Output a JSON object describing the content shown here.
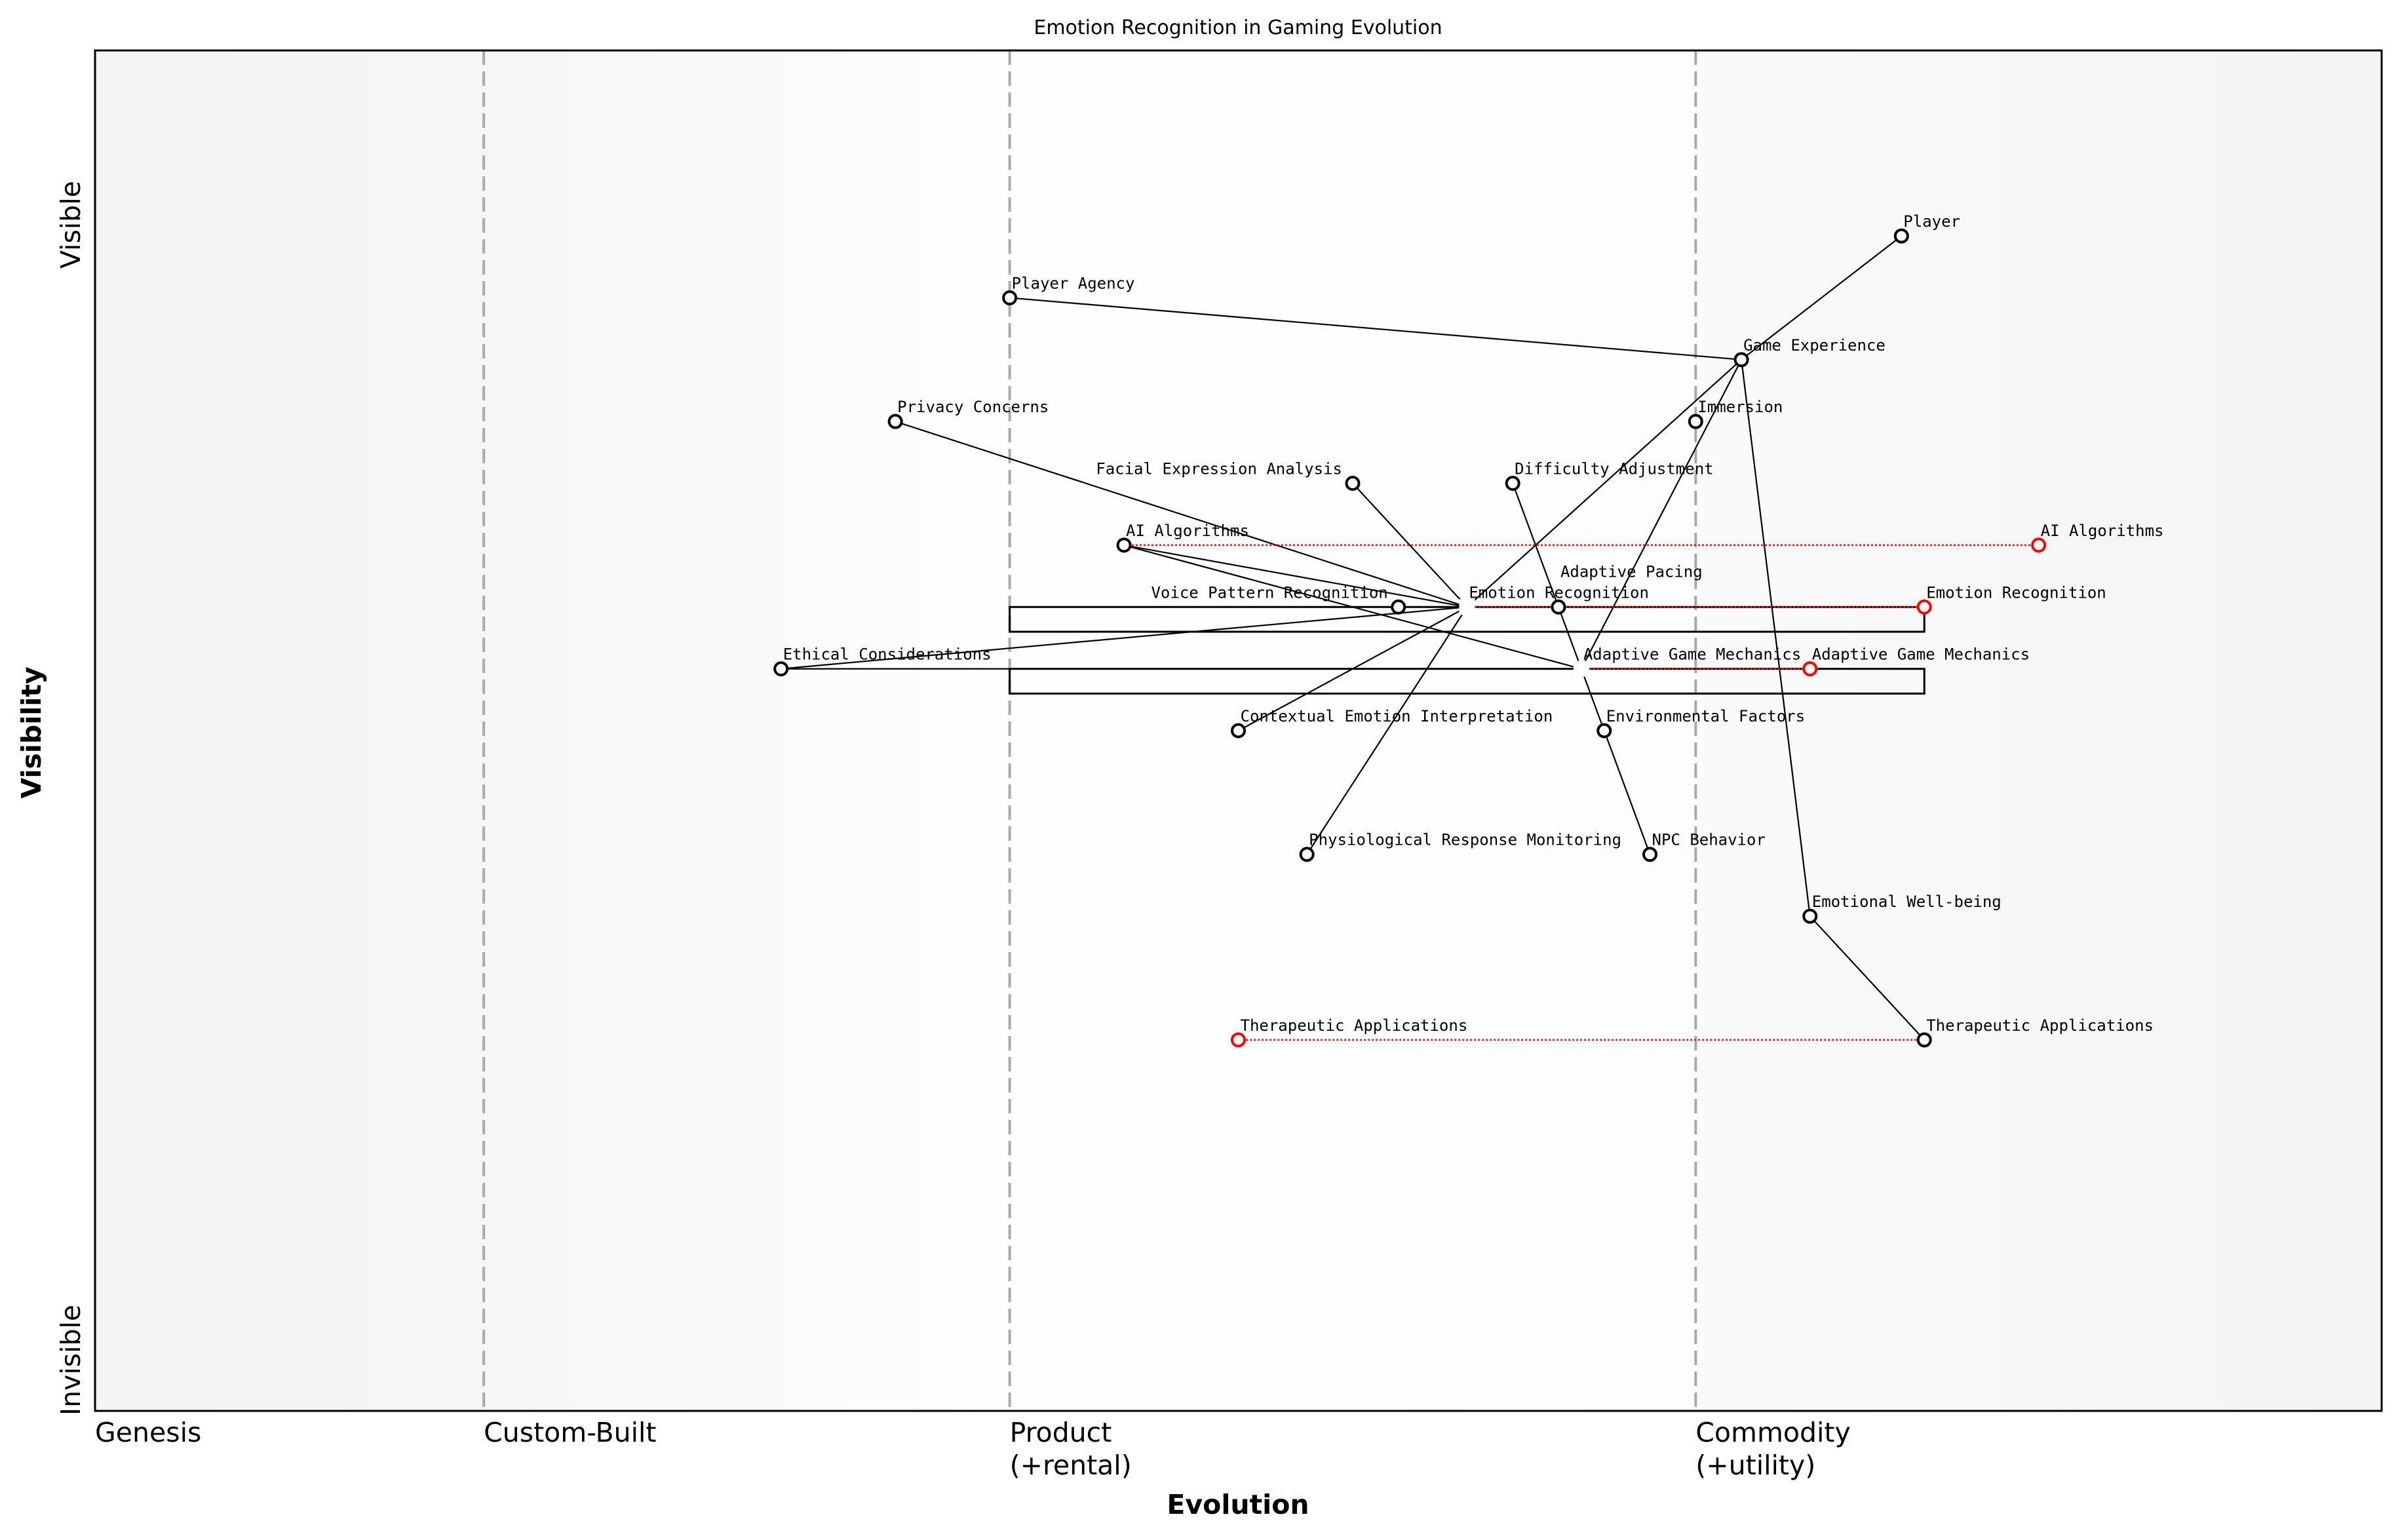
{
  "title": "Emotion Recognition in Gaming Evolution",
  "chart_data": {
    "type": "wardley-map",
    "title": "Emotion Recognition in Gaming Evolution",
    "xlabel": "Evolution",
    "ylabel": "Visibility",
    "xlim": [
      0,
      1
    ],
    "ylim": [
      0,
      1.1
    ],
    "y_tick_labels": {
      "top": "Visible",
      "bottom": "Invisible"
    },
    "stages": [
      {
        "label": "Genesis",
        "x": 0
      },
      {
        "label": "Custom-Built",
        "x": 0.17
      },
      {
        "label": "Product\n(+rental)",
        "x": 0.4
      },
      {
        "label": "Commodity\n(+utility)",
        "x": 0.7
      }
    ],
    "components": [
      {
        "name": "Player",
        "x": 0.79,
        "y": 0.95
      },
      {
        "name": "Player Agency",
        "x": 0.4,
        "y": 0.9
      },
      {
        "name": "Game Experience",
        "x": 0.72,
        "y": 0.85
      },
      {
        "name": "Privacy Concerns",
        "x": 0.35,
        "y": 0.8
      },
      {
        "name": "Immersion",
        "x": 0.7,
        "y": 0.8
      },
      {
        "name": "Facial Expression Analysis",
        "x": 0.55,
        "y": 0.75
      },
      {
        "name": "Difficulty Adjustment",
        "x": 0.62,
        "y": 0.75
      },
      {
        "name": "AI Algorithms",
        "x": 0.45,
        "y": 0.7
      },
      {
        "name": "Voice Pattern Recognition",
        "x": 0.57,
        "y": 0.65
      },
      {
        "name": "Emotion Recognition",
        "x": 0.6,
        "y": 0.65,
        "pipeline": true
      },
      {
        "name": "Adaptive Pacing",
        "x": 0.64,
        "y": 0.65
      },
      {
        "name": "Ethical Considerations",
        "x": 0.3,
        "y": 0.6
      },
      {
        "name": "Adaptive Game Mechanics",
        "x": 0.65,
        "y": 0.6,
        "pipeline": true
      },
      {
        "name": "Contextual Emotion Interpretation",
        "x": 0.5,
        "y": 0.55
      },
      {
        "name": "Environmental Factors",
        "x": 0.66,
        "y": 0.55
      },
      {
        "name": "Physiological Response Monitoring",
        "x": 0.53,
        "y": 0.45
      },
      {
        "name": "NPC Behavior",
        "x": 0.68,
        "y": 0.45
      },
      {
        "name": "Emotional Well-being",
        "x": 0.75,
        "y": 0.4
      },
      {
        "name": "Therapeutic Applications",
        "x": 0.8,
        "y": 0.3
      }
    ],
    "links": [
      [
        "Player",
        "Game Experience"
      ],
      [
        "Game Experience",
        "Player Agency"
      ],
      [
        "Game Experience",
        "Emotion Recognition"
      ],
      [
        "Game Experience",
        "Adaptive Game Mechanics"
      ],
      [
        "Game Experience",
        "Emotional Well-being"
      ],
      [
        "Privacy Concerns",
        "Emotion Recognition"
      ],
      [
        "Facial Expression Analysis",
        "Emotion Recognition"
      ],
      [
        "Voice Pattern Recognition",
        "Emotion Recognition"
      ],
      [
        "AI Algorithms",
        "Emotion Recognition"
      ],
      [
        "AI Algorithms",
        "Adaptive Game Mechanics"
      ],
      [
        "Ethical Considerations",
        "Emotion Recognition"
      ],
      [
        "Ethical Considerations",
        "Adaptive Game Mechanics"
      ],
      [
        "Contextual Emotion Interpretation",
        "Emotion Recognition"
      ],
      [
        "Physiological Response Monitoring",
        "Emotion Recognition"
      ],
      [
        "Difficulty Adjustment",
        "Adaptive Pacing"
      ],
      [
        "Adaptive Pacing",
        "Adaptive Game Mechanics"
      ],
      [
        "Adaptive Game Mechanics",
        "Environmental Factors"
      ],
      [
        "Environmental Factors",
        "NPC Behavior"
      ],
      [
        "Emotional Well-being",
        "Therapeutic Applications"
      ]
    ],
    "evolutions": [
      {
        "name": "AI Algorithms",
        "to_x": 0.85
      },
      {
        "name": "Emotion Recognition",
        "to_x": 0.8
      },
      {
        "name": "Adaptive Game Mechanics",
        "to_x": 0.75
      },
      {
        "name": "Therapeutic Applications",
        "to_x": 0.5
      }
    ],
    "pipelines": [
      {
        "name": "Emotion Recognition",
        "x_start": 0.4,
        "x_end": 0.8
      },
      {
        "name": "Adaptive Game Mechanics",
        "x_start": 0.4,
        "x_end": 0.8
      }
    ],
    "colors": {
      "component": "#000000",
      "evolve": "#ff0000",
      "stage_line": "#aaaaaa"
    }
  }
}
